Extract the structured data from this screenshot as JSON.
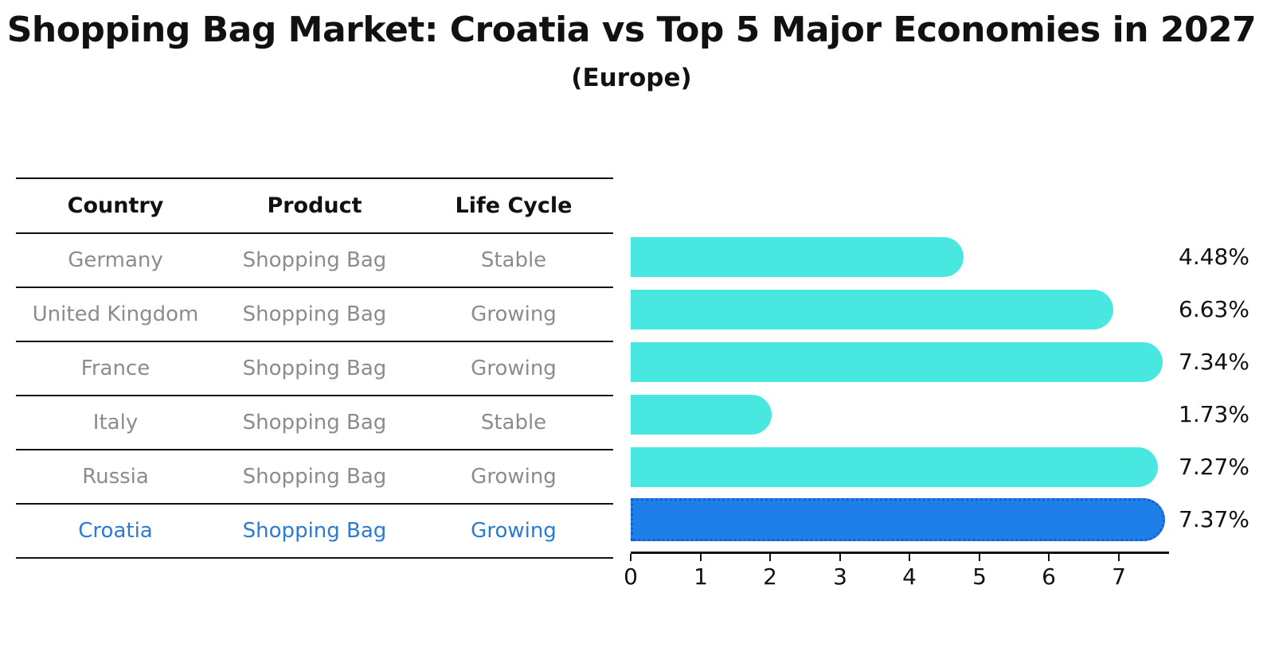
{
  "title": "Shopping Bag Market: Croatia vs Top 5 Major Economies in 2027",
  "subtitle": "(Europe)",
  "table": {
    "headers": [
      "Country",
      "Product",
      "Life Cycle"
    ],
    "rows": [
      {
        "country": "Germany",
        "product": "Shopping Bag",
        "life_cycle": "Stable",
        "highlighted": false
      },
      {
        "country": "United Kingdom",
        "product": "Shopping Bag",
        "life_cycle": "Growing",
        "highlighted": false
      },
      {
        "country": "France",
        "product": "Shopping Bag",
        "life_cycle": "Growing",
        "highlighted": false
      },
      {
        "country": "Italy",
        "product": "Shopping Bag",
        "life_cycle": "Stable",
        "highlighted": false
      },
      {
        "country": "Russia",
        "product": "Shopping Bag",
        "life_cycle": "Growing",
        "highlighted": false
      },
      {
        "country": "Croatia",
        "product": "Shopping Bag",
        "life_cycle": "Growing",
        "highlighted": true
      }
    ]
  },
  "chart_data": {
    "type": "bar",
    "orientation": "horizontal",
    "categories": [
      "Germany",
      "United Kingdom",
      "France",
      "Italy",
      "Russia",
      "Croatia"
    ],
    "values": [
      4.48,
      6.63,
      7.34,
      1.73,
      7.27,
      7.37
    ],
    "value_labels": [
      "4.48%",
      "6.63%",
      "7.34%",
      "1.73%",
      "7.27%",
      "7.37%"
    ],
    "x_ticks": [
      "0",
      "1",
      "2",
      "3",
      "4",
      "5",
      "6",
      "7"
    ],
    "xlim": [
      0,
      7.73
    ],
    "grid": false,
    "legend": false,
    "bar_color": "#48e8e0",
    "highlight_color": "#1e7fe8",
    "highlight_border_color": "#1a5fd0",
    "highlight_text_color": "#2b7bd4",
    "highlight_index": 5,
    "title": "Shopping Bag Market: Croatia vs Top 5 Major Economies in 2027",
    "subtitle": "(Europe)"
  }
}
